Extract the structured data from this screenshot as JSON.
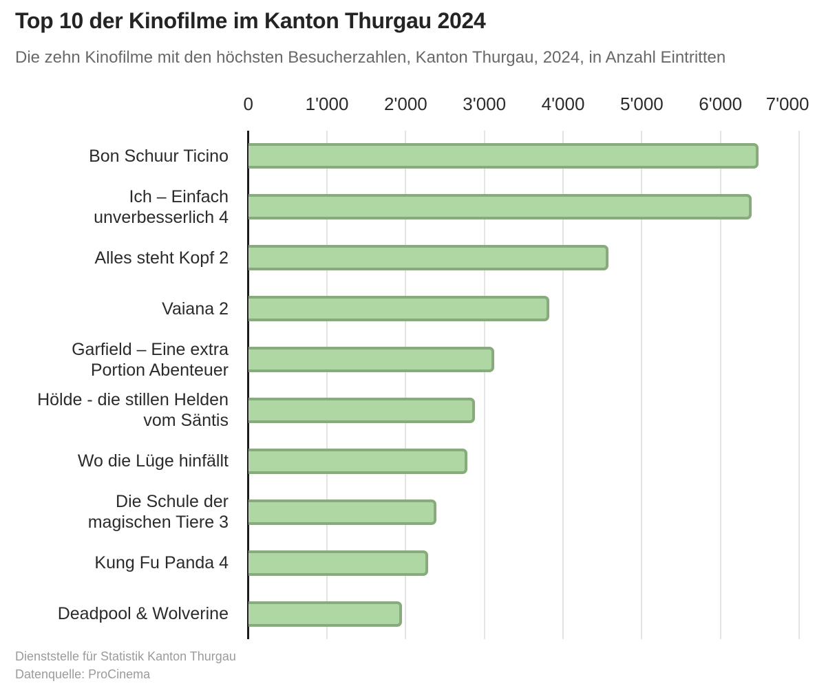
{
  "header": {
    "title": "Top 10 der Kinofilme im Kanton Thurgau 2024",
    "subtitle": "Die zehn Kinofilme mit den höchsten Besucherzahlen, Kanton Thurgau, 2024, in Anzahl Eintritten"
  },
  "footer": {
    "line1": "Dienststelle für Statistik Kanton Thurgau",
    "line2": "Datenquelle: ProCinema"
  },
  "colors": {
    "bar_fill": "#aed7a3",
    "bar_border": "#88aa7e",
    "axis_line": "#1c1c1c",
    "gridline": "#e4e4e4",
    "title_text": "#242424",
    "subtitle_text": "#686868",
    "label_text": "#2b2b2b",
    "footer_text": "#9b9b9b"
  },
  "chart_data": {
    "type": "bar",
    "orientation": "horizontal",
    "title": "Top 10 der Kinofilme im Kanton Thurgau 2024",
    "subtitle": "Die zehn Kinofilme mit den höchsten Besucherzahlen, Kanton Thurgau, 2024, in Anzahl Eintritten",
    "xlabel": "",
    "ylabel": "",
    "xlim": [
      0,
      7000
    ],
    "grid": true,
    "x_ticks": [
      0,
      1000,
      2000,
      3000,
      4000,
      5000,
      6000,
      7000
    ],
    "x_tick_labels": [
      "0",
      "1'000",
      "2'000",
      "3'000",
      "4'000",
      "5'000",
      "6'000",
      "7'000"
    ],
    "categories": [
      "Bon Schuur Ticino",
      "Ich – Einfach unverbesserlich 4",
      "Alles steht Kopf 2",
      "Vaiana 2",
      "Garfield – Eine extra Portion Abenteuer",
      "Hölde - die stillen Helden vom Säntis",
      "Wo die Lüge hinfällt",
      "Die Schule der magischen Tiere 3",
      "Kung Fu Panda 4",
      "Deadpool & Wolverine"
    ],
    "label_lines": [
      [
        "Bon Schuur Ticino"
      ],
      [
        "Ich – Einfach",
        "unverbesserlich 4"
      ],
      [
        "Alles steht Kopf 2"
      ],
      [
        "Vaiana 2"
      ],
      [
        "Garfield – Eine extra",
        "Portion Abenteuer"
      ],
      [
        "Hölde - die stillen Helden",
        "vom Säntis"
      ],
      [
        "Wo die Lüge hinfällt"
      ],
      [
        "Die Schule der",
        "magischen Tiere 3"
      ],
      [
        "Kung Fu Panda 4"
      ],
      [
        "Deadpool & Wolverine"
      ]
    ],
    "values": [
      6480,
      6390,
      4570,
      3820,
      3120,
      2880,
      2780,
      2390,
      2280,
      1950
    ]
  }
}
